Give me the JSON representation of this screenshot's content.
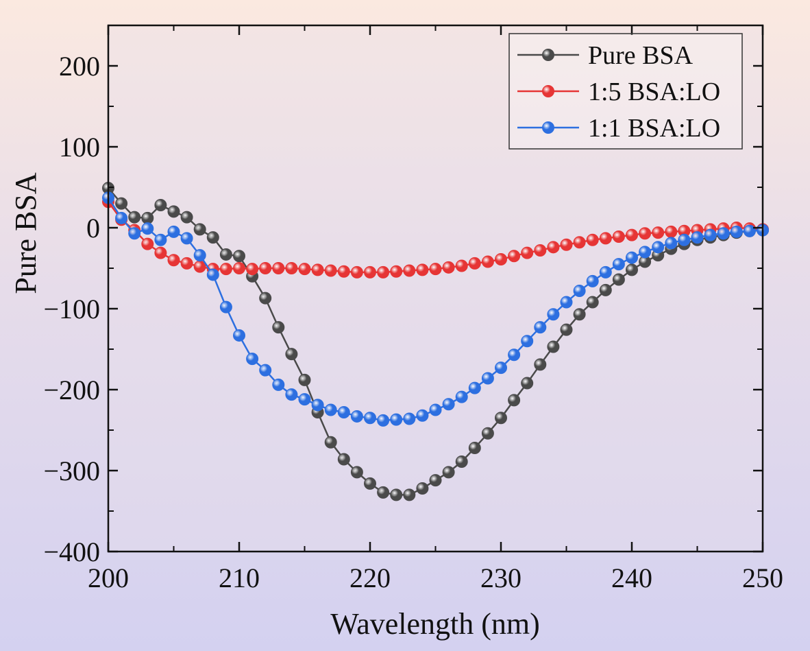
{
  "chart_data": {
    "type": "line",
    "title": "",
    "xlabel": "Wavelength (nm)",
    "ylabel": "Pure BSA",
    "xlim": [
      200,
      250
    ],
    "ylim": [
      -400,
      250
    ],
    "xticks": [
      200,
      210,
      220,
      230,
      240,
      250
    ],
    "yticks": [
      -400,
      -300,
      -200,
      -100,
      0,
      100,
      200
    ],
    "ytick_labels": [
      "−400",
      "−300",
      "−200",
      "−100",
      "0",
      "100",
      "200"
    ],
    "legend_position": "top-right",
    "x": [
      200,
      201,
      202,
      203,
      204,
      205,
      206,
      207,
      208,
      209,
      210,
      211,
      212,
      213,
      214,
      215,
      216,
      217,
      218,
      219,
      220,
      221,
      222,
      223,
      224,
      225,
      226,
      227,
      228,
      229,
      230,
      231,
      232,
      233,
      234,
      235,
      236,
      237,
      238,
      239,
      240,
      241,
      242,
      243,
      244,
      245,
      246,
      247,
      248,
      249,
      250
    ],
    "series": [
      {
        "name": "Pure BSA",
        "color": "#4a4a4a",
        "values": [
          49,
          30,
          13,
          12,
          28,
          20,
          13,
          -2,
          -12,
          -33,
          -35,
          -60,
          -87,
          -123,
          -156,
          -188,
          -228,
          -265,
          -286,
          -302,
          -316,
          -327,
          -330,
          -330,
          -322,
          -312,
          -302,
          -289,
          -272,
          -254,
          -235,
          -213,
          -192,
          -169,
          -147,
          -126,
          -107,
          -92,
          -77,
          -64,
          -52,
          -42,
          -34,
          -26,
          -20,
          -15,
          -12,
          -9,
          -6,
          -4,
          -3
        ]
      },
      {
        "name": "1:5 BSA:LO",
        "color": "#e63535",
        "values": [
          32,
          10,
          -3,
          -20,
          -31,
          -40,
          -44,
          -48,
          -51,
          -51,
          -50,
          -51,
          -50,
          -50,
          -50,
          -51,
          -52,
          -53,
          -54,
          -55,
          -55,
          -55,
          -54,
          -53,
          -52,
          -51,
          -49,
          -47,
          -44,
          -42,
          -39,
          -35,
          -31,
          -28,
          -24,
          -21,
          -18,
          -15,
          -13,
          -11,
          -9,
          -7,
          -6,
          -5,
          -4,
          -3,
          -2,
          -1,
          0,
          -1,
          -2
        ]
      },
      {
        "name": "1:1 BSA:LO",
        "color": "#2d6fe0",
        "values": [
          37,
          12,
          -7,
          -1,
          -15,
          -5,
          -13,
          -34,
          -58,
          -98,
          -133,
          -162,
          -176,
          -194,
          -206,
          -212,
          -219,
          -225,
          -228,
          -233,
          -235,
          -238,
          -237,
          -236,
          -232,
          -225,
          -218,
          -209,
          -198,
          -186,
          -173,
          -157,
          -140,
          -123,
          -107,
          -92,
          -78,
          -66,
          -55,
          -45,
          -37,
          -30,
          -24,
          -19,
          -15,
          -12,
          -9,
          -7,
          -5,
          -4,
          -3
        ]
      }
    ]
  }
}
